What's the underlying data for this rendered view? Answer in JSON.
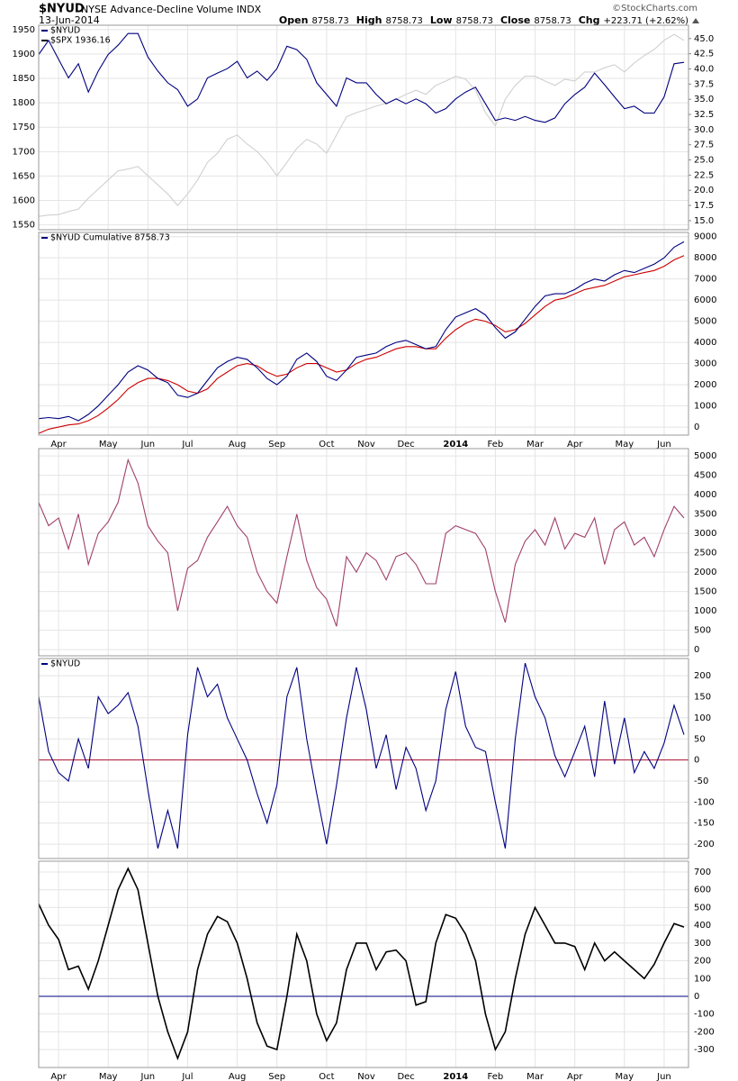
{
  "header": {
    "symbol": "$NYUD",
    "name": "NYSE Advance-Decline Volume INDX",
    "date": "13-Jun-2014",
    "source": "©StockCharts.com",
    "quote": [
      {
        "label": "Open",
        "value": "8758.73"
      },
      {
        "label": "High",
        "value": "8758.73"
      },
      {
        "label": "Low",
        "value": "8758.73"
      },
      {
        "label": "Close",
        "value": "8758.73"
      },
      {
        "label": "Chg",
        "value": "+223.71 (+2.62%)"
      }
    ]
  },
  "chart_data": [
    {
      "type": "line",
      "grid": true,
      "yaxis": "left",
      "ylim": [
        1540,
        1959
      ],
      "yticks": [
        1550,
        1600,
        1650,
        1700,
        1750,
        1800,
        1850,
        1900,
        1950
      ],
      "y2lim": [
        13.5,
        47.2
      ],
      "y2ticks": [
        {
          "value": 15,
          "label": "15.0"
        },
        17.5,
        {
          "value": 20,
          "label": "20.0"
        },
        22.5,
        {
          "value": 25,
          "label": "25.0"
        },
        27.5,
        {
          "value": 30,
          "label": "30.0"
        },
        32.5,
        {
          "value": 35,
          "label": "35.0"
        },
        37.5,
        {
          "value": 40,
          "label": "40.0"
        },
        42.5,
        {
          "value": 45,
          "label": "45.0"
        }
      ],
      "series": [
        {
          "name": "$NYUD",
          "color": "#000080",
          "values": [
            1899,
            1928,
            1889,
            1851,
            1880,
            1822,
            1865,
            1899,
            1918,
            1942,
            1942,
            1894,
            1865,
            1841,
            1827,
            1793,
            1808,
            1851,
            1861,
            1870,
            1885,
            1851,
            1865,
            1846,
            1870,
            1916,
            1909,
            1889,
            1841,
            1817,
            1793,
            1851,
            1841,
            1841,
            1817,
            1798,
            1808,
            1798,
            1808,
            1798,
            1779,
            1788,
            1808,
            1822,
            1832,
            1798,
            1764,
            1769,
            1764,
            1772,
            1764,
            1760,
            1769,
            1798,
            1817,
            1832,
            1861,
            1837,
            1812,
            1788,
            1793,
            1779,
            1779,
            1812,
            1880,
            1883
          ]
        },
        {
          "name": "$SPX 1936.16",
          "color": "#d0d0d0",
          "axis": "y2",
          "values": [
            15.7,
            15.9,
            16.0,
            16.5,
            16.9,
            18.7,
            20.2,
            21.7,
            23.2,
            23.5,
            23.9,
            22.4,
            20.9,
            19.4,
            17.5,
            19.4,
            21.7,
            24.6,
            26.1,
            28.4,
            29.1,
            27.6,
            26.4,
            24.6,
            22.4,
            24.6,
            26.9,
            28.4,
            27.6,
            26.1,
            29.1,
            32.1,
            32.8,
            33.3,
            33.9,
            34.3,
            35.0,
            35.8,
            36.5,
            35.8,
            37.3,
            38.0,
            38.8,
            38.3,
            36.5,
            32.8,
            30.6,
            35.0,
            37.3,
            38.8,
            38.8,
            38.0,
            37.3,
            38.3,
            38.0,
            39.5,
            39.5,
            40.2,
            40.7,
            39.5,
            41.0,
            42.2,
            43.2,
            44.7,
            45.7,
            44.7
          ]
        }
      ]
    },
    {
      "type": "line",
      "grid": true,
      "yaxis": "right",
      "categories": [
        null,
        null,
        "Apr",
        null,
        null,
        null,
        null,
        "May",
        null,
        null,
        null,
        "Jun",
        null,
        null,
        null,
        "Jul",
        null,
        null,
        null,
        null,
        "Aug",
        null,
        null,
        null,
        "Sep",
        null,
        null,
        null,
        null,
        "Oct",
        null,
        null,
        null,
        "Nov",
        null,
        null,
        null,
        "Dec",
        null,
        null,
        null,
        null,
        "2014",
        null,
        null,
        null,
        "Feb",
        null,
        null,
        null,
        "Mar",
        null,
        null,
        null,
        "Apr",
        null,
        null,
        null,
        null,
        "May",
        null,
        null,
        null,
        "Jun",
        null,
        null
      ],
      "ylim": [
        -380,
        9200
      ],
      "yticks": [
        0,
        1000,
        2000,
        3000,
        4000,
        5000,
        6000,
        7000,
        8000,
        9000
      ],
      "series": [
        {
          "name": "$NYUD Cumulative 8758.73",
          "color": "#000080",
          "values": [
            400,
            450,
            400,
            500,
            300,
            600,
            1000,
            1500,
            2000,
            2600,
            2900,
            2700,
            2300,
            2100,
            1500,
            1400,
            1600,
            2200,
            2800,
            3100,
            3300,
            3200,
            2800,
            2300,
            2000,
            2400,
            3200,
            3500,
            3100,
            2400,
            2200,
            2700,
            3300,
            3400,
            3500,
            3800,
            4000,
            4100,
            3900,
            3700,
            3800,
            4600,
            5200,
            5400,
            5600,
            5300,
            4700,
            4200,
            4500,
            5100,
            5700,
            6200,
            6300,
            6300,
            6500,
            6800,
            7000,
            6900,
            7200,
            7400,
            7300,
            7500,
            7700,
            8000,
            8500,
            8759
          ]
        },
        {
          "color": "#cc0000",
          "values": [
            -300,
            -100,
            0,
            100,
            150,
            300,
            550,
            900,
            1300,
            1800,
            2100,
            2300,
            2300,
            2200,
            2000,
            1700,
            1600,
            1800,
            2300,
            2600,
            2900,
            3000,
            2900,
            2600,
            2400,
            2500,
            2800,
            3000,
            3000,
            2800,
            2600,
            2700,
            3000,
            3200,
            3300,
            3500,
            3700,
            3800,
            3800,
            3700,
            3700,
            4200,
            4600,
            4900,
            5100,
            5000,
            4800,
            4500,
            4600,
            4900,
            5300,
            5700,
            6000,
            6100,
            6300,
            6500,
            6600,
            6700,
            6900,
            7100,
            7200,
            7300,
            7400,
            7600,
            7900,
            8100
          ]
        }
      ]
    },
    {
      "type": "line",
      "grid": true,
      "yaxis": "right",
      "ylim": [
        -160,
        5190
      ],
      "yticks": [
        0,
        500,
        1000,
        1500,
        2000,
        2500,
        3000,
        3500,
        4000,
        4500,
        5000
      ],
      "series": [
        {
          "color": "#a0406a",
          "values": [
            3800,
            3200,
            3400,
            2600,
            3500,
            2200,
            3000,
            3300,
            3800,
            4900,
            4300,
            3200,
            2800,
            2500,
            1000,
            2100,
            2300,
            2900,
            3300,
            3700,
            3200,
            2900,
            2000,
            1500,
            1200,
            2400,
            3500,
            2300,
            1600,
            1300,
            600,
            2400,
            2000,
            2500,
            2300,
            1800,
            2400,
            2500,
            2200,
            1700,
            1700,
            3000,
            3200,
            3100,
            3000,
            2600,
            1500,
            700,
            2200,
            2800,
            3100,
            2700,
            3400,
            2600,
            3000,
            2900,
            3400,
            2200,
            3100,
            3300,
            2700,
            2900,
            2400,
            3100,
            3700,
            3400
          ]
        }
      ]
    },
    {
      "type": "line",
      "grid": true,
      "yaxis": "right",
      "ylim": [
        -234,
        241
      ],
      "yticks": [
        -200,
        -150,
        -100,
        -50,
        0,
        50,
        100,
        150,
        200
      ],
      "hline": 0,
      "hline_color": "#b01030",
      "series": [
        {
          "name": "$NYUD",
          "color": "#000080",
          "values": [
            150,
            20,
            -30,
            -50,
            50,
            -20,
            150,
            110,
            130,
            160,
            80,
            -70,
            -210,
            -120,
            -210,
            60,
            220,
            150,
            180,
            100,
            50,
            0,
            -80,
            -150,
            -60,
            150,
            220,
            50,
            -80,
            -200,
            -60,
            100,
            220,
            120,
            -20,
            60,
            -70,
            30,
            -20,
            -120,
            -50,
            120,
            210,
            80,
            30,
            20,
            -100,
            -210,
            50,
            230,
            150,
            100,
            10,
            -40,
            20,
            80,
            -40,
            140,
            -10,
            100,
            -30,
            20,
            -20,
            40,
            130,
            60
          ]
        }
      ]
    },
    {
      "type": "line",
      "grid": true,
      "yaxis": "right",
      "categories": [
        null,
        null,
        "Apr",
        null,
        null,
        null,
        null,
        "May",
        null,
        null,
        null,
        "Jun",
        null,
        null,
        null,
        "Jul",
        null,
        null,
        null,
        null,
        "Aug",
        null,
        null,
        null,
        "Sep",
        null,
        null,
        null,
        null,
        "Oct",
        null,
        null,
        null,
        "Nov",
        null,
        null,
        null,
        "Dec",
        null,
        null,
        null,
        null,
        "2014",
        null,
        null,
        null,
        "Feb",
        null,
        null,
        null,
        "Mar",
        null,
        null,
        null,
        "Apr",
        null,
        null,
        null,
        null,
        "May",
        null,
        null,
        null,
        "Jun",
        null,
        null
      ],
      "ylim": [
        -401,
        761
      ],
      "yticks": [
        -300,
        -200,
        -100,
        0,
        100,
        200,
        300,
        400,
        500,
        600,
        700
      ],
      "hline": 0,
      "hline_color": "#000080",
      "series": [
        {
          "color": "#000000",
          "values": [
            520,
            400,
            320,
            150,
            170,
            40,
            200,
            400,
            600,
            720,
            600,
            300,
            0,
            -200,
            -350,
            -200,
            150,
            350,
            450,
            420,
            300,
            100,
            -150,
            -280,
            -300,
            0,
            350,
            200,
            -100,
            -250,
            -150,
            150,
            300,
            300,
            150,
            250,
            260,
            200,
            -50,
            -30,
            300,
            460,
            440,
            350,
            200,
            -100,
            -300,
            -200,
            100,
            350,
            500,
            400,
            300,
            300,
            280,
            150,
            300,
            200,
            250,
            200,
            150,
            100,
            180,
            300,
            410,
            390
          ]
        }
      ]
    }
  ]
}
